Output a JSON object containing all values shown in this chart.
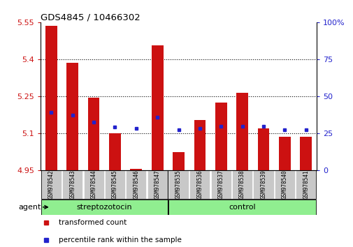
{
  "title": "GDS4845 / 10466302",
  "samples": [
    "GSM978542",
    "GSM978543",
    "GSM978544",
    "GSM978545",
    "GSM978546",
    "GSM978547",
    "GSM978535",
    "GSM978536",
    "GSM978537",
    "GSM978538",
    "GSM978539",
    "GSM978540",
    "GSM978541"
  ],
  "bar_tops": [
    5.535,
    5.385,
    5.245,
    5.1,
    4.955,
    5.455,
    5.025,
    5.155,
    5.225,
    5.265,
    5.12,
    5.085,
    5.085
  ],
  "bar_base": 4.95,
  "percentile_y": [
    5.185,
    5.175,
    5.145,
    5.125,
    5.12,
    5.165,
    5.115,
    5.12,
    5.13,
    5.13,
    5.13,
    5.115,
    5.115
  ],
  "groups": [
    {
      "label": "streptozotocin",
      "start": 0,
      "end": 6,
      "color": "#90ee90"
    },
    {
      "label": "control",
      "start": 6,
      "end": 13,
      "color": "#90ee90"
    }
  ],
  "ylim_left": [
    4.95,
    5.55
  ],
  "ylim_right": [
    0,
    100
  ],
  "yticks_left": [
    4.95,
    5.1,
    5.25,
    5.4,
    5.55
  ],
  "ytick_left_labels": [
    "4.95",
    "5.1",
    "5.25",
    "5.4",
    "5.55"
  ],
  "yticks_right": [
    0,
    25,
    50,
    75,
    100
  ],
  "ytick_right_labels": [
    "0",
    "25",
    "50",
    "75",
    "100%"
  ],
  "bar_color": "#cc1111",
  "dot_color": "#2222cc",
  "bar_width": 0.55,
  "left_tick_color": "#cc1111",
  "right_tick_color": "#2222cc",
  "bg_color": "#ffffff",
  "sample_box_color": "#c8c8c8",
  "group_box_color": "#90ee90",
  "agent_label": "agent",
  "legend": [
    {
      "label": "transformed count",
      "color": "#cc1111"
    },
    {
      "label": "percentile rank within the sample",
      "color": "#2222cc"
    }
  ],
  "group_sep": 5.5
}
